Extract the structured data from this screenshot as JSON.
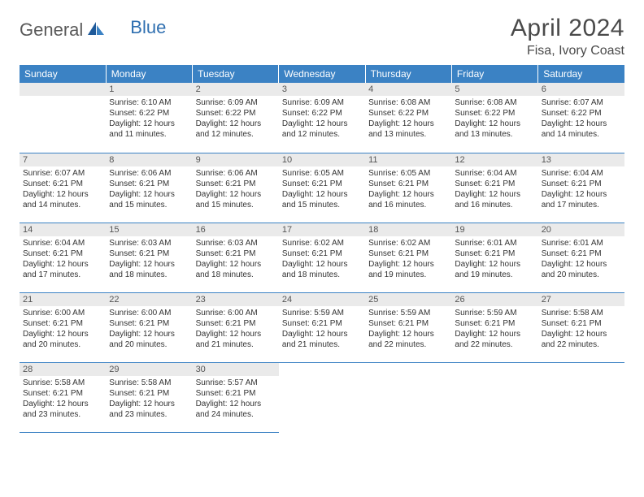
{
  "brand": {
    "part1": "General",
    "part2": "Blue"
  },
  "title": "April 2024",
  "location": "Fisa, Ivory Coast",
  "colors": {
    "header_bg": "#3b82c4",
    "header_text": "#ffffff",
    "day_num_bg": "#eaeaea",
    "border": "#3b82c4",
    "logo_gray": "#5a5a5a",
    "logo_blue": "#2f6fb0"
  },
  "weekdays": [
    "Sunday",
    "Monday",
    "Tuesday",
    "Wednesday",
    "Thursday",
    "Friday",
    "Saturday"
  ],
  "weeks": [
    [
      {
        "n": "",
        "sunrise": "",
        "sunset": "",
        "daylight": ""
      },
      {
        "n": "1",
        "sunrise": "Sunrise: 6:10 AM",
        "sunset": "Sunset: 6:22 PM",
        "daylight": "Daylight: 12 hours and 11 minutes."
      },
      {
        "n": "2",
        "sunrise": "Sunrise: 6:09 AM",
        "sunset": "Sunset: 6:22 PM",
        "daylight": "Daylight: 12 hours and 12 minutes."
      },
      {
        "n": "3",
        "sunrise": "Sunrise: 6:09 AM",
        "sunset": "Sunset: 6:22 PM",
        "daylight": "Daylight: 12 hours and 12 minutes."
      },
      {
        "n": "4",
        "sunrise": "Sunrise: 6:08 AM",
        "sunset": "Sunset: 6:22 PM",
        "daylight": "Daylight: 12 hours and 13 minutes."
      },
      {
        "n": "5",
        "sunrise": "Sunrise: 6:08 AM",
        "sunset": "Sunset: 6:22 PM",
        "daylight": "Daylight: 12 hours and 13 minutes."
      },
      {
        "n": "6",
        "sunrise": "Sunrise: 6:07 AM",
        "sunset": "Sunset: 6:22 PM",
        "daylight": "Daylight: 12 hours and 14 minutes."
      }
    ],
    [
      {
        "n": "7",
        "sunrise": "Sunrise: 6:07 AM",
        "sunset": "Sunset: 6:21 PM",
        "daylight": "Daylight: 12 hours and 14 minutes."
      },
      {
        "n": "8",
        "sunrise": "Sunrise: 6:06 AM",
        "sunset": "Sunset: 6:21 PM",
        "daylight": "Daylight: 12 hours and 15 minutes."
      },
      {
        "n": "9",
        "sunrise": "Sunrise: 6:06 AM",
        "sunset": "Sunset: 6:21 PM",
        "daylight": "Daylight: 12 hours and 15 minutes."
      },
      {
        "n": "10",
        "sunrise": "Sunrise: 6:05 AM",
        "sunset": "Sunset: 6:21 PM",
        "daylight": "Daylight: 12 hours and 15 minutes."
      },
      {
        "n": "11",
        "sunrise": "Sunrise: 6:05 AM",
        "sunset": "Sunset: 6:21 PM",
        "daylight": "Daylight: 12 hours and 16 minutes."
      },
      {
        "n": "12",
        "sunrise": "Sunrise: 6:04 AM",
        "sunset": "Sunset: 6:21 PM",
        "daylight": "Daylight: 12 hours and 16 minutes."
      },
      {
        "n": "13",
        "sunrise": "Sunrise: 6:04 AM",
        "sunset": "Sunset: 6:21 PM",
        "daylight": "Daylight: 12 hours and 17 minutes."
      }
    ],
    [
      {
        "n": "14",
        "sunrise": "Sunrise: 6:04 AM",
        "sunset": "Sunset: 6:21 PM",
        "daylight": "Daylight: 12 hours and 17 minutes."
      },
      {
        "n": "15",
        "sunrise": "Sunrise: 6:03 AM",
        "sunset": "Sunset: 6:21 PM",
        "daylight": "Daylight: 12 hours and 18 minutes."
      },
      {
        "n": "16",
        "sunrise": "Sunrise: 6:03 AM",
        "sunset": "Sunset: 6:21 PM",
        "daylight": "Daylight: 12 hours and 18 minutes."
      },
      {
        "n": "17",
        "sunrise": "Sunrise: 6:02 AM",
        "sunset": "Sunset: 6:21 PM",
        "daylight": "Daylight: 12 hours and 18 minutes."
      },
      {
        "n": "18",
        "sunrise": "Sunrise: 6:02 AM",
        "sunset": "Sunset: 6:21 PM",
        "daylight": "Daylight: 12 hours and 19 minutes."
      },
      {
        "n": "19",
        "sunrise": "Sunrise: 6:01 AM",
        "sunset": "Sunset: 6:21 PM",
        "daylight": "Daylight: 12 hours and 19 minutes."
      },
      {
        "n": "20",
        "sunrise": "Sunrise: 6:01 AM",
        "sunset": "Sunset: 6:21 PM",
        "daylight": "Daylight: 12 hours and 20 minutes."
      }
    ],
    [
      {
        "n": "21",
        "sunrise": "Sunrise: 6:00 AM",
        "sunset": "Sunset: 6:21 PM",
        "daylight": "Daylight: 12 hours and 20 minutes."
      },
      {
        "n": "22",
        "sunrise": "Sunrise: 6:00 AM",
        "sunset": "Sunset: 6:21 PM",
        "daylight": "Daylight: 12 hours and 20 minutes."
      },
      {
        "n": "23",
        "sunrise": "Sunrise: 6:00 AM",
        "sunset": "Sunset: 6:21 PM",
        "daylight": "Daylight: 12 hours and 21 minutes."
      },
      {
        "n": "24",
        "sunrise": "Sunrise: 5:59 AM",
        "sunset": "Sunset: 6:21 PM",
        "daylight": "Daylight: 12 hours and 21 minutes."
      },
      {
        "n": "25",
        "sunrise": "Sunrise: 5:59 AM",
        "sunset": "Sunset: 6:21 PM",
        "daylight": "Daylight: 12 hours and 22 minutes."
      },
      {
        "n": "26",
        "sunrise": "Sunrise: 5:59 AM",
        "sunset": "Sunset: 6:21 PM",
        "daylight": "Daylight: 12 hours and 22 minutes."
      },
      {
        "n": "27",
        "sunrise": "Sunrise: 5:58 AM",
        "sunset": "Sunset: 6:21 PM",
        "daylight": "Daylight: 12 hours and 22 minutes."
      }
    ],
    [
      {
        "n": "28",
        "sunrise": "Sunrise: 5:58 AM",
        "sunset": "Sunset: 6:21 PM",
        "daylight": "Daylight: 12 hours and 23 minutes."
      },
      {
        "n": "29",
        "sunrise": "Sunrise: 5:58 AM",
        "sunset": "Sunset: 6:21 PM",
        "daylight": "Daylight: 12 hours and 23 minutes."
      },
      {
        "n": "30",
        "sunrise": "Sunrise: 5:57 AM",
        "sunset": "Sunset: 6:21 PM",
        "daylight": "Daylight: 12 hours and 24 minutes."
      },
      {
        "n": "",
        "sunrise": "",
        "sunset": "",
        "daylight": ""
      },
      {
        "n": "",
        "sunrise": "",
        "sunset": "",
        "daylight": ""
      },
      {
        "n": "",
        "sunrise": "",
        "sunset": "",
        "daylight": ""
      },
      {
        "n": "",
        "sunrise": "",
        "sunset": "",
        "daylight": ""
      }
    ]
  ]
}
